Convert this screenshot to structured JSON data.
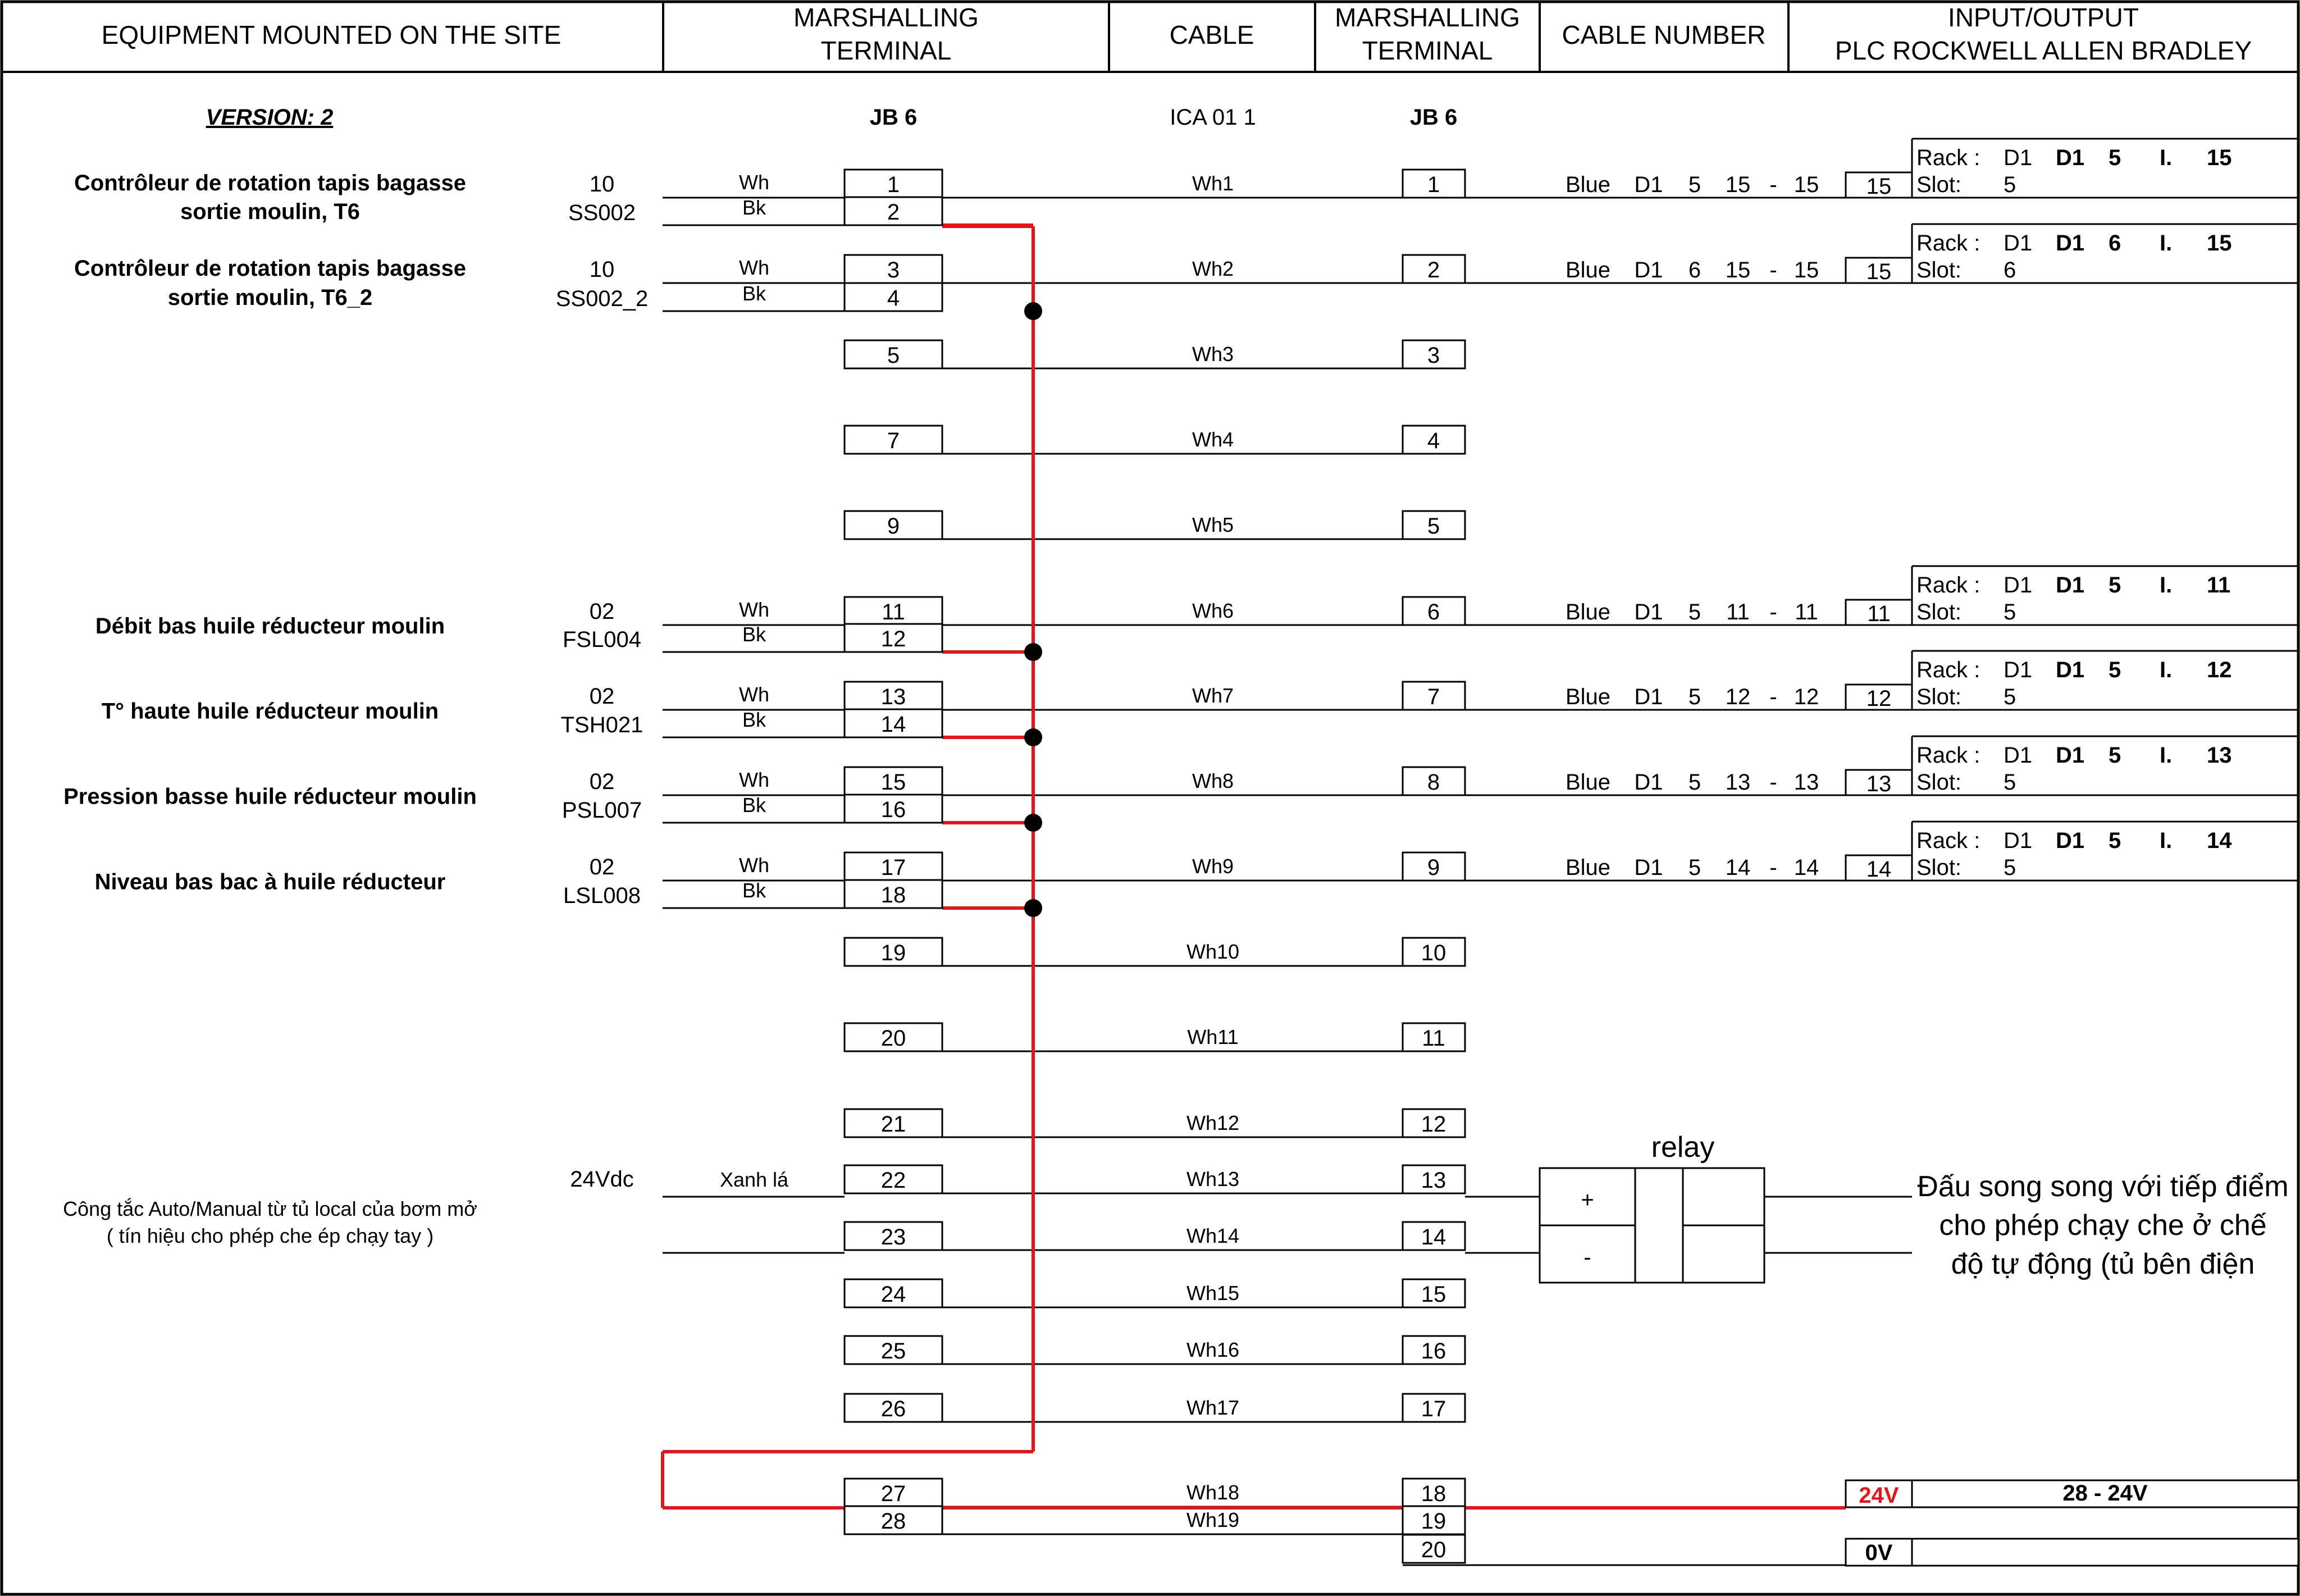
{
  "header": {
    "equipment": "EQUIPMENT MOUNTED ON THE SITE",
    "marshalling_1": [
      "MARSHALLING",
      "TERMINAL"
    ],
    "cable": "CABLE",
    "marshalling_2": [
      "MARSHALLING",
      "TERMINAL"
    ],
    "cable_number": "CABLE NUMBER",
    "io": [
      "INPUT/OUTPUT",
      "PLC ROCKWELL ALLEN BRADLEY"
    ]
  },
  "version": "VERSION: 2",
  "jb_left": "JB 6",
  "cable_id": "ICA 01 1",
  "jb_right": "JB 6",
  "devices": [
    {
      "name": [
        "Contrôleur de rotation tapis bagasse",
        "sortie moulin, T6"
      ],
      "num": "10",
      "tag": "SS002"
    },
    {
      "name": [
        "Contrôleur de rotation tapis bagasse",
        "sortie moulin, T6_2"
      ],
      "num": "10",
      "tag": "SS002_2"
    },
    {
      "name": [
        "Débit bas huile réducteur moulin"
      ],
      "num": "02",
      "tag": "FSL004"
    },
    {
      "name": [
        "T° haute huile réducteur moulin"
      ],
      "num": "02",
      "tag": "TSH021"
    },
    {
      "name": [
        "Pression basse huile réducteur moulin"
      ],
      "num": "02",
      "tag": "PSL007"
    },
    {
      "name": [
        "Niveau bas bac à huile réducteur"
      ],
      "num": "02",
      "tag": "LSL008"
    }
  ],
  "wire_labels": {
    "wh": "Wh",
    "bk": "Bk"
  },
  "auto_manual": {
    "name": [
      "Công tắc Auto/Manual từ tủ local của bơm mở",
      "( tín hiệu cho phép che ép chạy tay )"
    ],
    "voltage": "24Vdc",
    "wire": "Xanh lá"
  },
  "jb_terminals": [
    "1",
    "2",
    "3",
    "4",
    "5",
    "7",
    "9",
    "11",
    "12",
    "13",
    "14",
    "15",
    "16",
    "17",
    "18",
    "19",
    "20",
    "21",
    "22",
    "23",
    "24",
    "25",
    "26",
    "27",
    "28"
  ],
  "cable_cores": [
    "Wh1",
    "Wh2",
    "Wh3",
    "Wh4",
    "Wh5",
    "Wh6",
    "Wh7",
    "Wh8",
    "Wh9",
    "Wh10",
    "Wh11",
    "Wh12",
    "Wh13",
    "Wh14",
    "Wh15",
    "Wh16",
    "Wh17",
    "Wh18",
    "Wh19"
  ],
  "right_terminals": [
    "1",
    "2",
    "3",
    "4",
    "5",
    "6",
    "7",
    "8",
    "9",
    "10",
    "11",
    "12",
    "13",
    "14",
    "15",
    "16",
    "17",
    "18",
    "19",
    "20"
  ],
  "cable_numbers": [
    {
      "color": "Blue",
      "d": "D1",
      "slot": "5",
      "from": "15",
      "dash": "-",
      "to": "15",
      "box": "15"
    },
    {
      "color": "Blue",
      "d": "D1",
      "slot": "6",
      "from": "15",
      "dash": "-",
      "to": "15",
      "box": "15"
    },
    {
      "color": "Blue",
      "d": "D1",
      "slot": "5",
      "from": "11",
      "dash": "-",
      "to": "11",
      "box": "11"
    },
    {
      "color": "Blue",
      "d": "D1",
      "slot": "5",
      "from": "12",
      "dash": "-",
      "to": "12",
      "box": "12"
    },
    {
      "color": "Blue",
      "d": "D1",
      "slot": "5",
      "from": "13",
      "dash": "-",
      "to": "13",
      "box": "13"
    },
    {
      "color": "Blue",
      "d": "D1",
      "slot": "5",
      "from": "14",
      "dash": "-",
      "to": "14",
      "box": "14"
    }
  ],
  "plc": [
    {
      "rack": "Rack :",
      "rack_val": "D1",
      "addr": [
        "D1",
        "5",
        "I.",
        "15"
      ],
      "slot": "Slot:",
      "slot_val": "5"
    },
    {
      "rack": "Rack :",
      "rack_val": "D1",
      "addr": [
        "D1",
        "6",
        "I.",
        "15"
      ],
      "slot": "Slot:",
      "slot_val": "6"
    },
    {
      "rack": "Rack :",
      "rack_val": "D1",
      "addr": [
        "D1",
        "5",
        "I.",
        "11"
      ],
      "slot": "Slot:",
      "slot_val": "5"
    },
    {
      "rack": "Rack :",
      "rack_val": "D1",
      "addr": [
        "D1",
        "5",
        "I.",
        "12"
      ],
      "slot": "Slot:",
      "slot_val": "5"
    },
    {
      "rack": "Rack :",
      "rack_val": "D1",
      "addr": [
        "D1",
        "5",
        "I.",
        "13"
      ],
      "slot": "Slot:",
      "slot_val": "5"
    },
    {
      "rack": "Rack :",
      "rack_val": "D1",
      "addr": [
        "D1",
        "5",
        "I.",
        "14"
      ],
      "slot": "Slot:",
      "slot_val": "5"
    }
  ],
  "relay": {
    "label": "relay",
    "plus": "+",
    "minus": "-"
  },
  "note": [
    "Đấu song song với tiếp điểm",
    "cho phép chạy che ở chế",
    "độ tự động (tủ bên điện"
  ],
  "power": {
    "v24": "24V",
    "v24_label": "28 - 24V",
    "v0": "0V"
  },
  "colors": {
    "wire_red": "#e8141c",
    "text_red": "#e8141c",
    "line": "#000000"
  }
}
